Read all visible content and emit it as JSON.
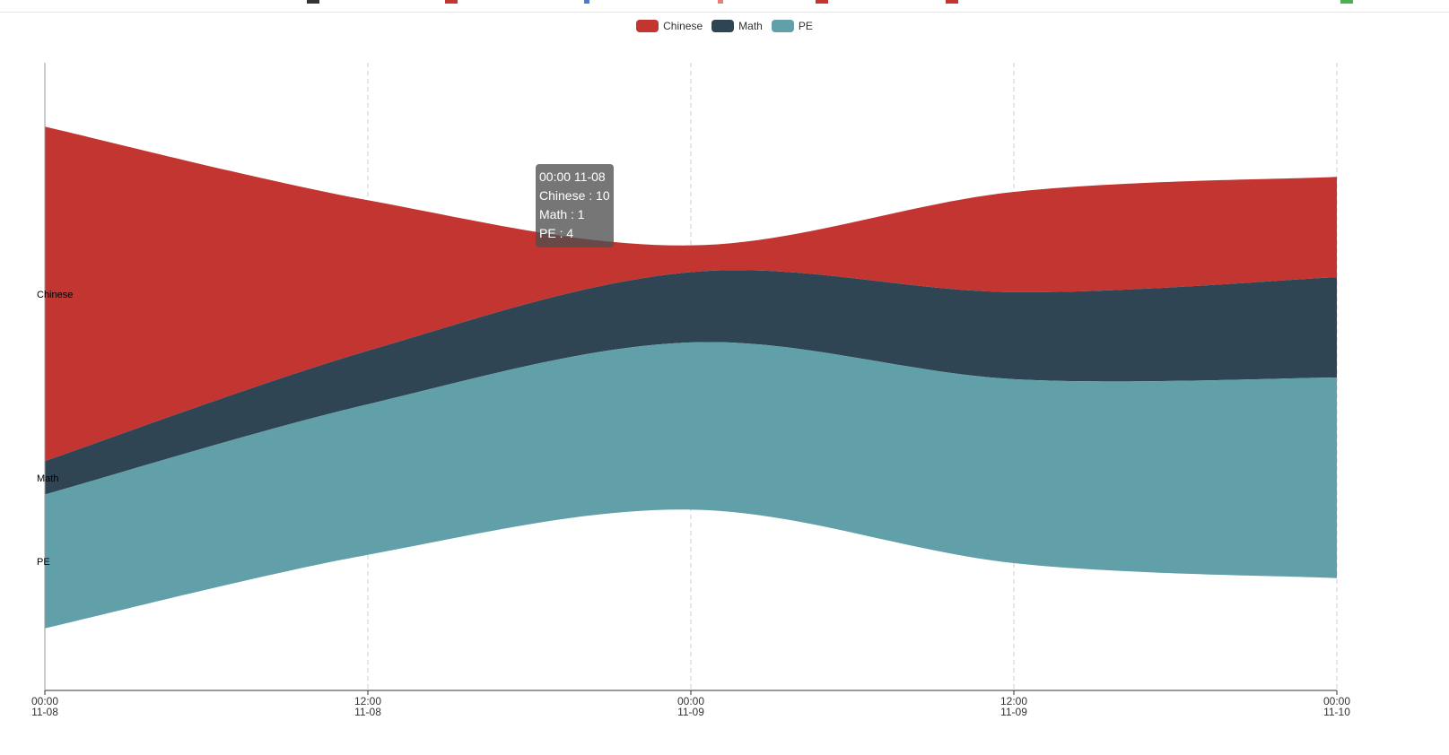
{
  "colors": {
    "Chinese": "#c23531",
    "Math": "#2f4554",
    "PE": "#61a0a8",
    "strip": [
      "#333333",
      "#c23531",
      "#4a7bd0",
      "#e67e7e",
      "#c23531",
      "#c23531",
      "#4caf50"
    ]
  },
  "legend": {
    "items": [
      "Chinese",
      "Math",
      "PE"
    ]
  },
  "tooltip": {
    "title": "00:00 11-08",
    "rows": [
      "Chinese : 10",
      "Math : 1",
      "PE : 4"
    ]
  },
  "chart_data": {
    "type": "themeRiver",
    "x": [
      "2019-11-08 00:00",
      "2019-11-08 12:00",
      "2019-11-09 00:00",
      "2019-11-09 12:00",
      "2019-11-10 00:00"
    ],
    "x_tick_labels": [
      [
        "00:00",
        "11-08"
      ],
      [
        "12:00",
        "11-08"
      ],
      [
        "00:00",
        "11-09"
      ],
      [
        "12:00",
        "11-09"
      ],
      [
        "00:00",
        "11-10"
      ]
    ],
    "series": [
      {
        "name": "Chinese",
        "values": [
          10,
          4.5,
          0.8,
          3,
          3
        ]
      },
      {
        "name": "Math",
        "values": [
          1,
          1.6,
          2.1,
          2.6,
          3
        ]
      },
      {
        "name": "PE",
        "values": [
          4,
          4.5,
          5,
          5.5,
          6
        ]
      }
    ],
    "series_labels": [
      "Chinese",
      "Math",
      "PE"
    ],
    "grid": "vertical-dashed",
    "legend_position": "top-center"
  }
}
